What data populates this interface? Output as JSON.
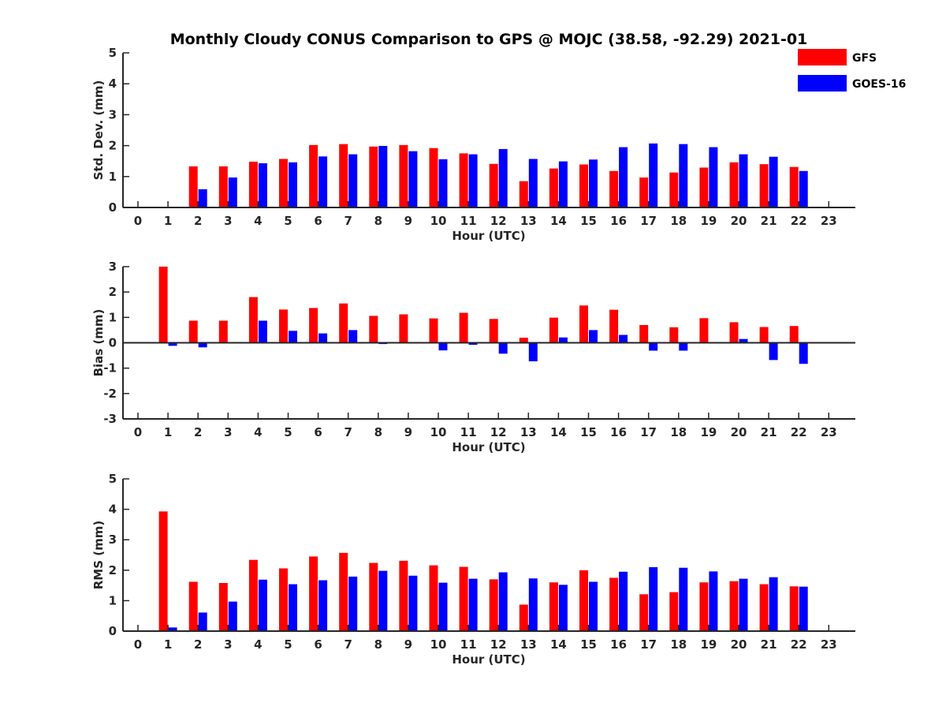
{
  "title": "Monthly Cloudy CONUS Comparison to GPS @ MOJC (38.58, -92.29) 2021-01",
  "colors": {
    "gfs": "#ff0000",
    "goes": "#0000ff",
    "axis": "#262626"
  },
  "legend": [
    {
      "name": "GFS",
      "color": "#ff0000"
    },
    {
      "name": "GOES-16",
      "color": "#0000ff"
    }
  ],
  "chart_data": [
    {
      "type": "bar",
      "title": "Monthly Cloudy CONUS Comparison to GPS @ MOJC (38.58, -92.29) 2021-01",
      "xlabel": "Hour (UTC)",
      "ylabel": "Std. Dev. (mm)",
      "ylim": [
        0,
        5
      ],
      "yticks": [
        "0",
        "1",
        "2",
        "3",
        "4",
        "5"
      ],
      "categories": [
        "0",
        "1",
        "2",
        "3",
        "4",
        "5",
        "6",
        "7",
        "8",
        "9",
        "10",
        "11",
        "12",
        "13",
        "14",
        "15",
        "16",
        "17",
        "18",
        "19",
        "20",
        "21",
        "22",
        "23"
      ],
      "series": [
        {
          "name": "GFS",
          "values": [
            null,
            null,
            1.33,
            1.33,
            1.48,
            1.57,
            2.02,
            2.05,
            1.97,
            2.02,
            1.92,
            1.75,
            1.41,
            0.85,
            1.26,
            1.39,
            1.18,
            0.97,
            1.13,
            1.29,
            1.46,
            1.4,
            1.31,
            null
          ]
        },
        {
          "name": "GOES-16",
          "values": [
            null,
            null,
            0.59,
            0.97,
            1.43,
            1.46,
            1.65,
            1.72,
            1.99,
            1.82,
            1.56,
            1.72,
            1.89,
            1.57,
            1.49,
            1.55,
            1.95,
            2.07,
            2.05,
            1.95,
            1.72,
            1.64,
            1.18,
            null
          ]
        }
      ]
    },
    {
      "type": "bar",
      "xlabel": "Hour (UTC)",
      "ylabel": "Bias (mm)",
      "ylim": [
        -3,
        3
      ],
      "yticks": [
        "-3",
        "-2",
        "-1",
        "0",
        "1",
        "2",
        "3"
      ],
      "categories": [
        "0",
        "1",
        "2",
        "3",
        "4",
        "5",
        "6",
        "7",
        "8",
        "9",
        "10",
        "11",
        "12",
        "13",
        "14",
        "15",
        "16",
        "17",
        "18",
        "19",
        "20",
        "21",
        "22",
        "23"
      ],
      "series": [
        {
          "name": "GFS",
          "values": [
            null,
            3.0,
            0.87,
            0.87,
            1.8,
            1.31,
            1.37,
            1.55,
            1.06,
            1.12,
            0.96,
            1.18,
            0.94,
            0.2,
            0.99,
            1.47,
            1.3,
            0.7,
            0.61,
            0.97,
            0.81,
            0.62,
            0.66,
            null
          ]
        },
        {
          "name": "GOES-16",
          "values": [
            null,
            -0.12,
            -0.18,
            -0.02,
            0.87,
            0.47,
            0.37,
            0.5,
            -0.05,
            0.01,
            -0.3,
            -0.08,
            -0.43,
            -0.73,
            0.21,
            0.5,
            0.31,
            -0.31,
            -0.31,
            0.02,
            0.15,
            -0.68,
            -0.83,
            null
          ]
        }
      ]
    },
    {
      "type": "bar",
      "xlabel": "Hour (UTC)",
      "ylabel": "RMS (mm)",
      "ylim": [
        0,
        5
      ],
      "yticks": [
        "0",
        "1",
        "2",
        "3",
        "4",
        "5"
      ],
      "categories": [
        "0",
        "1",
        "2",
        "3",
        "4",
        "5",
        "6",
        "7",
        "8",
        "9",
        "10",
        "11",
        "12",
        "13",
        "14",
        "15",
        "16",
        "17",
        "18",
        "19",
        "20",
        "21",
        "22",
        "23"
      ],
      "series": [
        {
          "name": "GFS",
          "values": [
            null,
            3.93,
            1.62,
            1.58,
            2.34,
            2.06,
            2.45,
            2.57,
            2.24,
            2.31,
            2.16,
            2.11,
            1.7,
            0.87,
            1.6,
            2.0,
            1.75,
            1.21,
            1.28,
            1.6,
            1.64,
            1.54,
            1.47,
            null
          ]
        },
        {
          "name": "GOES-16",
          "values": [
            null,
            0.12,
            0.61,
            0.97,
            1.69,
            1.54,
            1.67,
            1.79,
            1.98,
            1.82,
            1.59,
            1.72,
            1.93,
            1.73,
            1.52,
            1.62,
            1.95,
            2.1,
            2.08,
            1.96,
            1.72,
            1.77,
            1.46,
            null
          ]
        }
      ]
    }
  ]
}
